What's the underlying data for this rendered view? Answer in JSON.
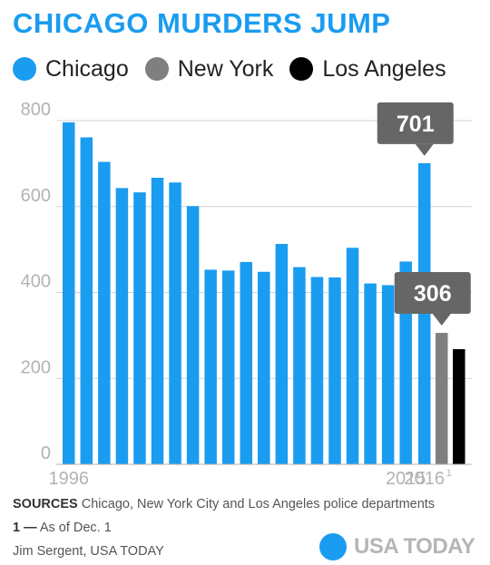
{
  "header": {
    "title": "CHICAGO MURDERS JUMP"
  },
  "legend": [
    {
      "label": "Chicago",
      "color": "#1a9cf0"
    },
    {
      "label": "New York",
      "color": "#7f7f7f"
    },
    {
      "label": "Los Angeles",
      "color": "#000000"
    }
  ],
  "chart_data": {
    "type": "bar",
    "ylim": [
      0,
      800
    ],
    "grid": true,
    "y_ticks": [
      "0",
      "200",
      "400",
      "600",
      "800"
    ],
    "x_tick_labels": [
      {
        "text": "1996",
        "category": "1996"
      },
      {
        "text": "2015",
        "category": "2015"
      },
      {
        "text": "2016",
        "category": "2016 Chicago",
        "superscript": "1"
      }
    ],
    "series": [
      {
        "name": "Chicago",
        "color": "#1a9cf0",
        "x": [
          "1996",
          "1997",
          "1998",
          "1999",
          "2000",
          "2001",
          "2002",
          "2003",
          "2004",
          "2005",
          "2006",
          "2007",
          "2008",
          "2009",
          "2010",
          "2011",
          "2012",
          "2013",
          "2014",
          "2015",
          "2016"
        ],
        "values": [
          796,
          761,
          704,
          643,
          633,
          667,
          656,
          601,
          453,
          451,
          471,
          448,
          513,
          459,
          436,
          435,
          504,
          421,
          417,
          472,
          701
        ]
      },
      {
        "name": "New York",
        "color": "#7f7f7f",
        "x": [
          "2016"
        ],
        "values": [
          306
        ]
      },
      {
        "name": "Los Angeles",
        "color": "#000000",
        "x": [
          "2016"
        ],
        "values": [
          268
        ]
      }
    ],
    "annotations": [
      {
        "text": "701",
        "series": "Chicago",
        "x": "2016",
        "color": "#666666"
      },
      {
        "text": "306",
        "series": "New York",
        "x": "2016",
        "color": "#666666"
      }
    ]
  },
  "footer": {
    "sources_label": "SOURCES",
    "sources_text": "Chicago, New York City and Los Angeles police departments",
    "note_label": "1 —",
    "note_text": "As of Dec. 1",
    "credit": "Jim Sergent, USA TODAY",
    "brand": "USA TODAY"
  }
}
